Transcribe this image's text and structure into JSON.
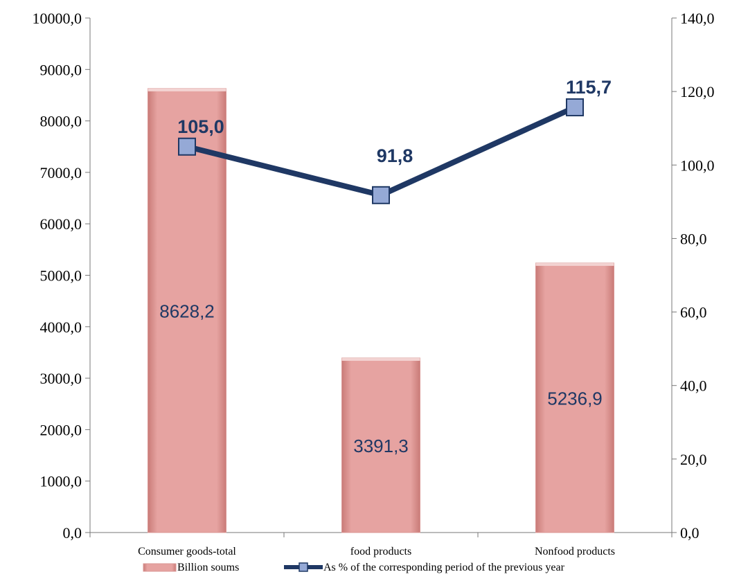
{
  "chart_data": {
    "type": "bar",
    "categories": [
      "Consumer goods-total",
      "food products",
      "Nonfood products"
    ],
    "series": [
      {
        "name": "Billion soums",
        "type": "bar",
        "axis": "left",
        "values": [
          8628.2,
          3391.3,
          5236.9
        ],
        "labels": [
          "8628,2",
          "3391,3",
          "5236,9"
        ],
        "color": "#e6a3a1"
      },
      {
        "name": "As % of the corresponding period of the previous year",
        "type": "line",
        "axis": "right",
        "values": [
          105.0,
          91.8,
          115.7
        ],
        "labels": [
          "105,0",
          "91,8",
          "115,7"
        ],
        "color": "#1f3864",
        "marker_color": "#95a9d6"
      }
    ],
    "y_left": {
      "min": 0,
      "max": 10000,
      "ticks": [
        "0,0",
        "1000,0",
        "2000,0",
        "3000,0",
        "4000,0",
        "5000,0",
        "6000,0",
        "7000,0",
        "8000,0",
        "9000,0",
        "10000,0"
      ]
    },
    "y_right": {
      "min": 0,
      "max": 140,
      "ticks": [
        "0,0",
        "20,0",
        "40,0",
        "60,0",
        "80,0",
        "100,0",
        "120,0",
        "140,0"
      ]
    },
    "grid": false,
    "legend": "bottom"
  }
}
